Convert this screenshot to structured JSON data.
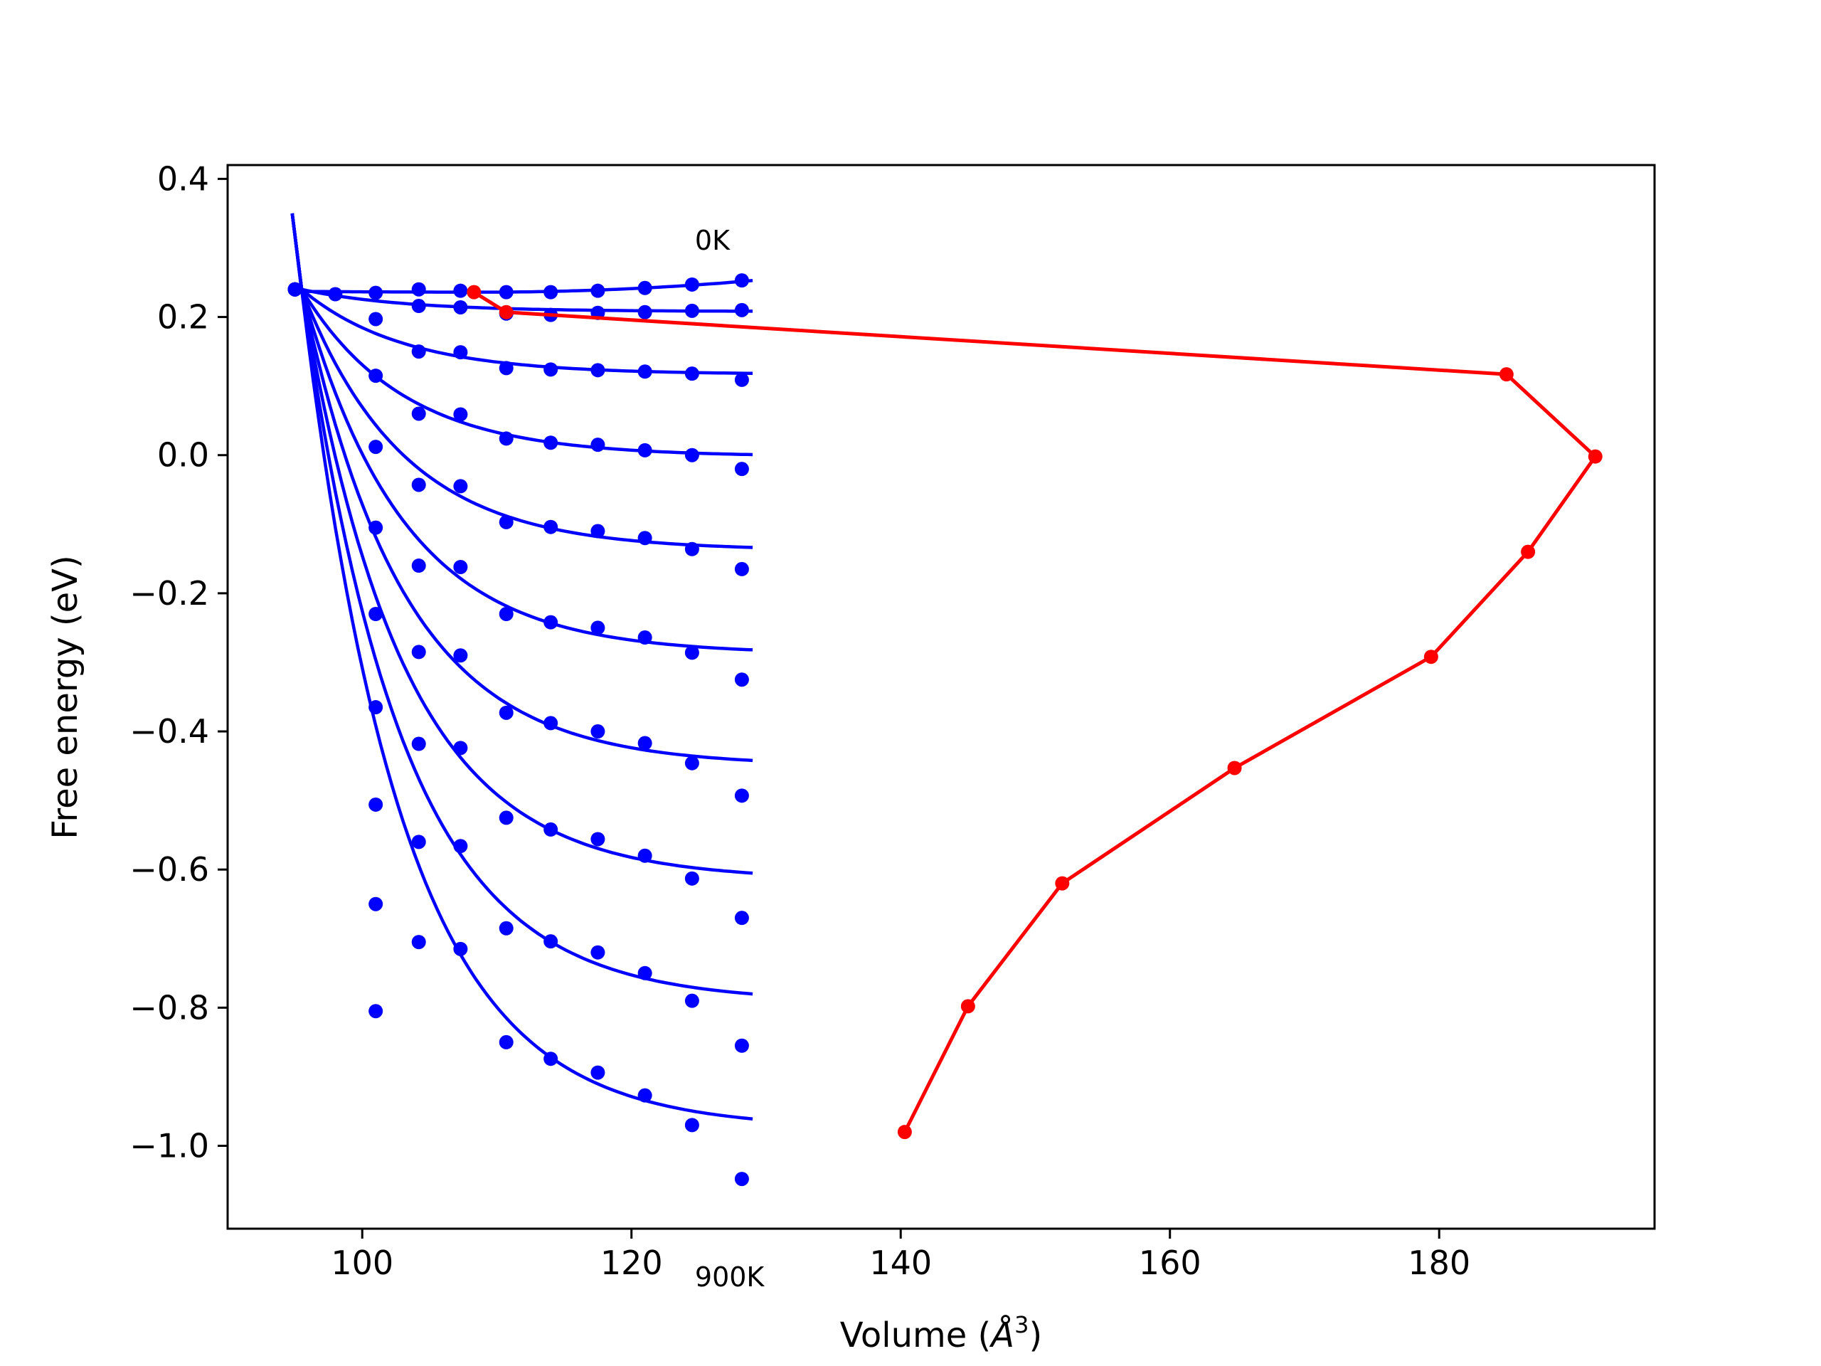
{
  "chart_data": {
    "type": "scatter",
    "title": "",
    "xlabel_text": "Volume (",
    "xlabel_unit_base": "Å",
    "xlabel_unit_exp": "3",
    "xlabel_close": ")",
    "ylabel": "Free energy (eV)",
    "xlim": [
      90,
      196
    ],
    "ylim": [
      -1.12,
      0.42
    ],
    "xticks": [
      100,
      120,
      140,
      160,
      180
    ],
    "xtick_labels": [
      "100",
      "120",
      "140",
      "160",
      "180"
    ],
    "yticks": [
      0.4,
      0.2,
      0.0,
      -0.2,
      -0.4,
      -0.6,
      -0.8,
      -1.0
    ],
    "ytick_labels": [
      "0.4",
      "0.2",
      "0.0",
      "−0.2",
      "−0.4",
      "−0.6",
      "−0.8",
      "−1.0"
    ],
    "grid": false,
    "colors": {
      "points": "#0000ff",
      "fits": "#0000ff",
      "trend": "#ff0000"
    },
    "annotations": [
      {
        "text": "0K",
        "x": 124.5,
        "y": 0.31
      },
      {
        "text": "900K",
        "x": 124.5,
        "y": -1.01
      }
    ],
    "x": [
      95,
      98,
      101,
      104.2,
      107.3,
      110.7,
      114,
      117.5,
      121,
      124.5,
      128.2
    ],
    "fit_curves": [
      {
        "e_min": 0.236,
        "v_min": 109.0,
        "v_end": 129,
        "v_start": 94.8
      },
      {
        "e_min": 0.208,
        "v_min": 124.0,
        "v_end": 129,
        "v_start": 94.8
      },
      {
        "e_min": 0.117,
        "v_min": 129.0,
        "v_end": 129,
        "v_start": 94.8
      },
      {
        "e_min": -0.002,
        "v_min": 129.0,
        "v_end": 129,
        "v_start": 94.8
      },
      {
        "e_min": -0.138,
        "v_min": 129.0,
        "v_end": 129,
        "v_start": 94.8
      },
      {
        "e_min": -0.288,
        "v_min": 129.0,
        "v_end": 129,
        "v_start": 94.8
      },
      {
        "e_min": -0.45,
        "v_min": 129.0,
        "v_end": 129,
        "v_start": 94.8
      },
      {
        "e_min": -0.615,
        "v_min": 129.0,
        "v_end": 129,
        "v_start": 94.8
      },
      {
        "e_min": -0.792,
        "v_min": 129.0,
        "v_end": 129,
        "v_start": 94.8
      },
      {
        "e_min": -0.975,
        "v_min": 129.0,
        "v_end": 129,
        "v_start": 94.8
      }
    ],
    "series": [
      {
        "values": [
          0.24,
          0.233,
          0.235,
          0.24,
          0.238,
          0.236,
          0.236,
          0.238,
          0.242,
          0.247,
          0.253
        ]
      },
      {
        "values": [
          0.24,
          null,
          0.197,
          0.216,
          0.214,
          0.205,
          0.203,
          0.206,
          0.207,
          0.209,
          0.21
        ]
      },
      {
        "values": [
          0.24,
          null,
          0.115,
          0.15,
          0.149,
          0.126,
          0.124,
          0.123,
          0.121,
          0.118,
          0.109
        ]
      },
      {
        "values": [
          0.24,
          null,
          0.012,
          0.06,
          0.059,
          0.024,
          0.018,
          0.015,
          0.007,
          0.0,
          -0.02
        ]
      },
      {
        "values": [
          0.24,
          null,
          -0.105,
          -0.043,
          -0.045,
          -0.097,
          -0.104,
          -0.11,
          -0.12,
          -0.136,
          -0.165
        ]
      },
      {
        "values": [
          0.24,
          null,
          -0.23,
          -0.16,
          -0.162,
          -0.23,
          -0.242,
          -0.25,
          -0.264,
          -0.286,
          -0.325
        ]
      },
      {
        "values": [
          0.24,
          null,
          -0.365,
          -0.285,
          -0.29,
          -0.373,
          -0.388,
          -0.4,
          -0.417,
          -0.446,
          -0.493
        ]
      },
      {
        "values": [
          0.24,
          null,
          -0.506,
          -0.418,
          -0.424,
          -0.525,
          -0.542,
          -0.556,
          -0.58,
          -0.613,
          -0.67
        ]
      },
      {
        "values": [
          0.24,
          null,
          -0.65,
          -0.56,
          -0.566,
          -0.685,
          -0.704,
          -0.72,
          -0.75,
          -0.79,
          -0.855
        ]
      },
      {
        "values": [
          0.24,
          null,
          -0.805,
          -0.705,
          -0.715,
          -0.85,
          -0.874,
          -0.894,
          -0.927,
          -0.97,
          -1.048
        ]
      }
    ],
    "trend_line": {
      "x": [
        108.3,
        110.7,
        185.0,
        191.6,
        186.6,
        179.4,
        164.8,
        152.0,
        145.0,
        140.3
      ],
      "y": [
        0.236,
        0.207,
        0.117,
        -0.002,
        -0.14,
        -0.292,
        -0.453,
        -0.62,
        -0.798,
        -0.98
      ]
    }
  }
}
